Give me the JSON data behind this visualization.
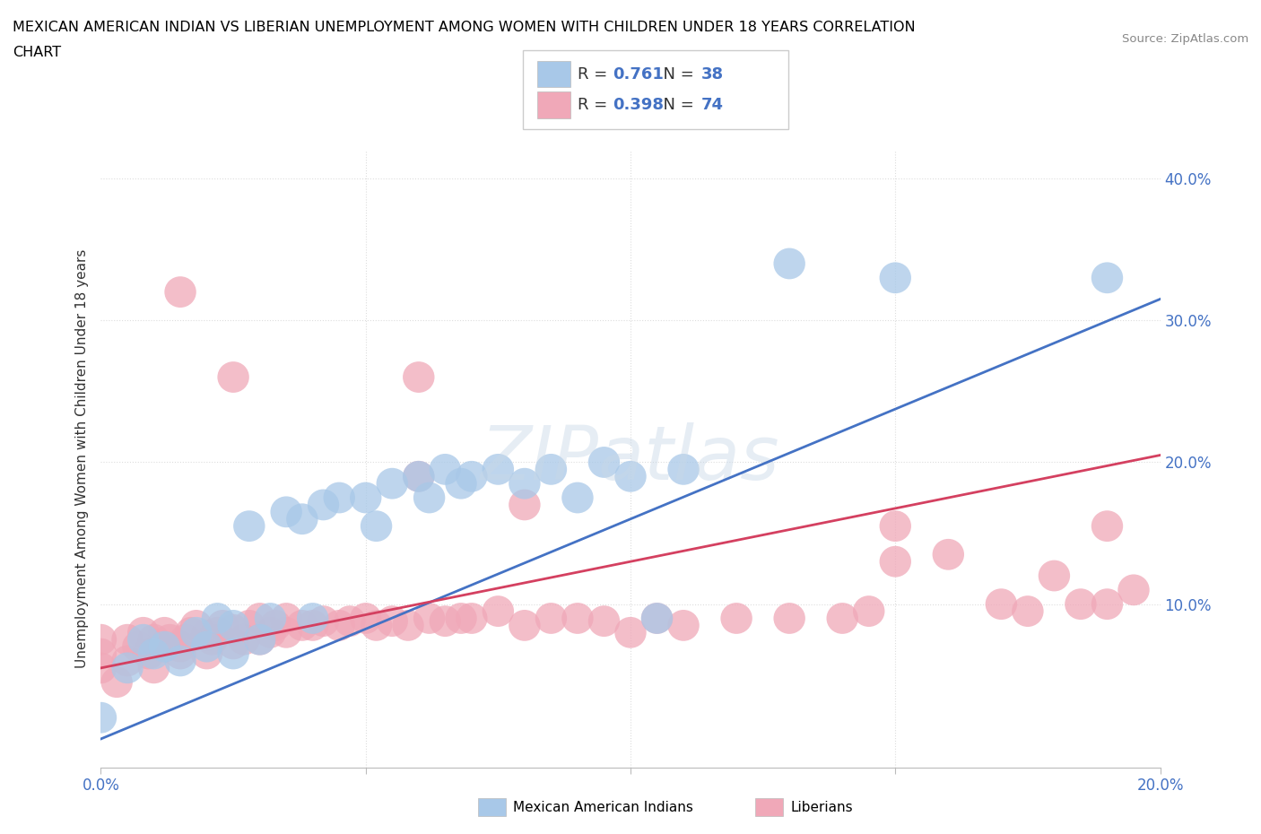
{
  "title_line1": "MEXICAN AMERICAN INDIAN VS LIBERIAN UNEMPLOYMENT AMONG WOMEN WITH CHILDREN UNDER 18 YEARS CORRELATION",
  "title_line2": "CHART",
  "source": "Source: ZipAtlas.com",
  "ylabel": "Unemployment Among Women with Children Under 18 years",
  "xlim": [
    0.0,
    0.2
  ],
  "ylim": [
    -0.015,
    0.42
  ],
  "xticks": [
    0.0,
    0.05,
    0.1,
    0.15,
    0.2
  ],
  "xticklabels": [
    "0.0%",
    "",
    "",
    "",
    "20.0%"
  ],
  "yticks": [
    0.1,
    0.2,
    0.3,
    0.4
  ],
  "yticklabels": [
    "10.0%",
    "20.0%",
    "30.0%",
    "40.0%"
  ],
  "blue_color": "#A8C8E8",
  "blue_edge_color": "#A8C8E8",
  "pink_color": "#F0A8B8",
  "pink_edge_color": "#F0A8B8",
  "blue_line_color": "#4472C4",
  "pink_line_color": "#D44060",
  "grid_color": "#DDDDDD",
  "top_grid_style": "dotted",
  "legend_R1": "0.761",
  "legend_N1": "38",
  "legend_R2": "0.398",
  "legend_N2": "74",
  "watermark": "ZIPatlas",
  "blue_line_x": [
    0.0,
    0.2
  ],
  "blue_line_y": [
    0.005,
    0.315
  ],
  "pink_line_x": [
    0.0,
    0.2
  ],
  "pink_line_y": [
    0.055,
    0.205
  ],
  "blue_scatter_x": [
    0.0,
    0.005,
    0.008,
    0.01,
    0.012,
    0.015,
    0.018,
    0.02,
    0.022,
    0.025,
    0.025,
    0.028,
    0.03,
    0.032,
    0.035,
    0.038,
    0.04,
    0.042,
    0.045,
    0.05,
    0.052,
    0.055,
    0.06,
    0.062,
    0.065,
    0.068,
    0.07,
    0.075,
    0.08,
    0.085,
    0.09,
    0.095,
    0.1,
    0.105,
    0.11,
    0.13,
    0.15,
    0.19
  ],
  "blue_scatter_y": [
    0.02,
    0.055,
    0.075,
    0.065,
    0.07,
    0.06,
    0.08,
    0.07,
    0.09,
    0.065,
    0.085,
    0.155,
    0.075,
    0.09,
    0.165,
    0.16,
    0.09,
    0.17,
    0.175,
    0.175,
    0.155,
    0.185,
    0.19,
    0.175,
    0.195,
    0.185,
    0.19,
    0.195,
    0.185,
    0.195,
    0.175,
    0.2,
    0.19,
    0.09,
    0.195,
    0.34,
    0.33,
    0.33
  ],
  "pink_scatter_x": [
    0.0,
    0.0,
    0.0,
    0.003,
    0.005,
    0.005,
    0.007,
    0.008,
    0.009,
    0.01,
    0.01,
    0.012,
    0.012,
    0.013,
    0.015,
    0.015,
    0.016,
    0.017,
    0.018,
    0.02,
    0.02,
    0.021,
    0.022,
    0.023,
    0.025,
    0.025,
    0.027,
    0.028,
    0.03,
    0.03,
    0.032,
    0.033,
    0.035,
    0.035,
    0.038,
    0.04,
    0.042,
    0.045,
    0.047,
    0.05,
    0.052,
    0.055,
    0.058,
    0.06,
    0.062,
    0.065,
    0.068,
    0.07,
    0.075,
    0.08,
    0.085,
    0.09,
    0.095,
    0.1,
    0.105,
    0.11,
    0.12,
    0.13,
    0.14,
    0.145,
    0.15,
    0.16,
    0.17,
    0.175,
    0.18,
    0.185,
    0.19,
    0.19,
    0.195,
    0.15,
    0.06,
    0.08,
    0.015,
    0.025
  ],
  "pink_scatter_y": [
    0.055,
    0.065,
    0.075,
    0.045,
    0.06,
    0.075,
    0.07,
    0.08,
    0.065,
    0.055,
    0.075,
    0.07,
    0.08,
    0.075,
    0.065,
    0.07,
    0.075,
    0.08,
    0.085,
    0.065,
    0.078,
    0.075,
    0.08,
    0.085,
    0.072,
    0.082,
    0.075,
    0.085,
    0.075,
    0.09,
    0.08,
    0.085,
    0.08,
    0.09,
    0.085,
    0.085,
    0.088,
    0.085,
    0.088,
    0.09,
    0.085,
    0.088,
    0.085,
    0.19,
    0.09,
    0.088,
    0.09,
    0.09,
    0.095,
    0.085,
    0.09,
    0.09,
    0.088,
    0.08,
    0.09,
    0.085,
    0.09,
    0.09,
    0.09,
    0.095,
    0.13,
    0.135,
    0.1,
    0.095,
    0.12,
    0.1,
    0.1,
    0.155,
    0.11,
    0.155,
    0.26,
    0.17,
    0.32,
    0.26
  ]
}
